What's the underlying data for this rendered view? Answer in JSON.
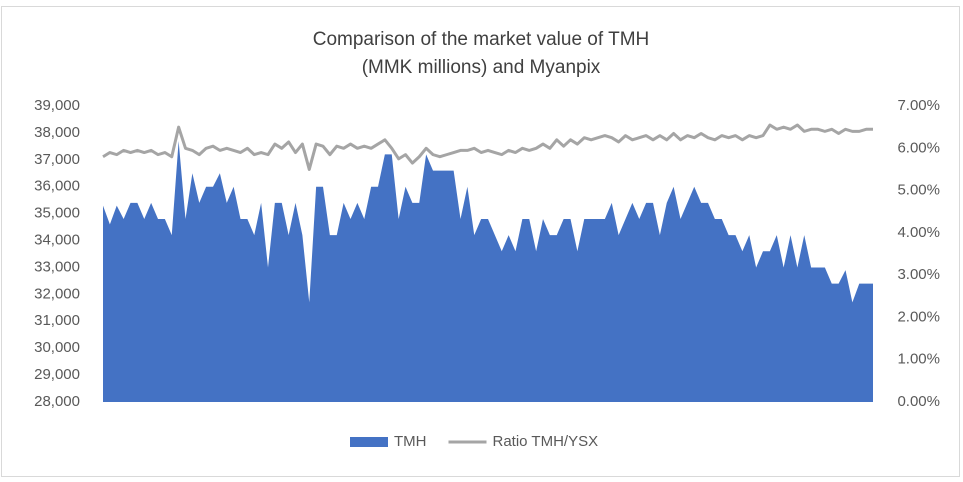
{
  "chart_data": {
    "type": "area-line",
    "title": [
      "Comparison of the market value of TMH",
      "(MMK millions) and Myanpix"
    ],
    "categories": [
      null,
      null,
      null,
      null,
      null,
      null,
      null,
      null,
      null,
      null,
      null,
      null,
      null,
      null,
      null,
      null,
      null,
      null,
      null,
      null,
      null,
      null,
      null,
      null,
      null,
      null,
      null,
      null,
      null,
      null,
      null,
      null,
      null,
      null,
      null,
      null,
      null,
      null,
      null,
      null,
      null,
      null,
      null,
      null,
      null,
      null,
      null,
      null,
      null,
      null,
      null,
      null,
      null,
      null,
      null,
      null,
      null,
      null,
      null,
      null,
      null,
      null,
      null,
      null,
      null,
      null,
      null,
      null,
      null,
      null,
      null,
      null,
      null,
      null,
      null,
      null,
      null,
      null,
      null,
      null,
      null,
      null,
      null,
      null,
      null,
      null,
      null,
      null,
      null,
      null,
      null,
      null,
      null,
      null,
      null,
      null,
      null,
      null,
      null,
      null,
      null,
      null,
      null,
      null,
      null,
      null,
      null,
      null,
      null,
      null,
      null,
      null,
      null
    ],
    "series": [
      {
        "name": "TMH",
        "type": "area",
        "color": "#4472c4",
        "values": [
          35300,
          34600,
          35300,
          34800,
          35400,
          35400,
          34800,
          35400,
          34800,
          34800,
          34200,
          37700,
          34800,
          36500,
          35400,
          36000,
          36000,
          36500,
          35400,
          36000,
          34800,
          34800,
          34200,
          35400,
          33000,
          35400,
          35400,
          34200,
          35400,
          34200,
          31700,
          36000,
          36000,
          34200,
          34200,
          35400,
          34800,
          35400,
          34800,
          36000,
          36000,
          37200,
          37200,
          34800,
          36000,
          35400,
          35400,
          37200,
          36600,
          36600,
          36600,
          36600,
          34800,
          36000,
          34200,
          34800,
          34800,
          34200,
          33600,
          34200,
          33600,
          34800,
          34800,
          33600,
          34800,
          34200,
          34200,
          34800,
          34800,
          33600,
          34800,
          34800,
          34800,
          34800,
          35400,
          34200,
          34800,
          35400,
          34800,
          35400,
          35400,
          34200,
          35400,
          36000,
          34800,
          35400,
          36000,
          35400,
          35400,
          34800,
          34800,
          34200,
          34200,
          33600,
          34200,
          33000,
          33600,
          33600,
          34200,
          33000,
          34200,
          33000,
          34200,
          33000,
          33000,
          33000,
          32400,
          32400,
          32900,
          31700,
          32400,
          32400,
          32400
        ]
      },
      {
        "name": "Ratio TMH/YSX",
        "type": "line",
        "axis": "y2",
        "color": "#a5a5a5",
        "values": [
          5.8,
          5.9,
          5.85,
          5.95,
          5.9,
          5.95,
          5.9,
          5.95,
          5.85,
          5.9,
          5.8,
          6.5,
          6.0,
          5.95,
          5.85,
          6.0,
          6.05,
          5.95,
          6.0,
          5.95,
          5.9,
          6.0,
          5.85,
          5.9,
          5.85,
          6.1,
          6.0,
          6.15,
          5.9,
          6.1,
          5.5,
          6.1,
          6.05,
          5.85,
          6.05,
          6.0,
          6.1,
          6.0,
          6.05,
          6.0,
          6.1,
          6.2,
          6.0,
          5.75,
          5.85,
          5.65,
          5.8,
          6.0,
          5.85,
          5.8,
          5.85,
          5.9,
          5.95,
          5.95,
          6.0,
          5.9,
          5.95,
          5.9,
          5.85,
          5.95,
          5.9,
          6.0,
          5.95,
          6.0,
          6.1,
          6.0,
          6.2,
          6.05,
          6.2,
          6.1,
          6.25,
          6.2,
          6.25,
          6.3,
          6.25,
          6.15,
          6.3,
          6.2,
          6.25,
          6.3,
          6.2,
          6.3,
          6.2,
          6.35,
          6.2,
          6.3,
          6.25,
          6.35,
          6.25,
          6.2,
          6.3,
          6.25,
          6.3,
          6.2,
          6.3,
          6.25,
          6.3,
          6.55,
          6.45,
          6.5,
          6.45,
          6.55,
          6.4,
          6.45,
          6.45,
          6.4,
          6.45,
          6.35,
          6.45,
          6.4,
          6.4,
          6.45,
          6.45
        ]
      }
    ],
    "ylim": [
      28000,
      39000
    ],
    "yticks": [
      {
        "value": 28000,
        "label": "28,000"
      },
      {
        "value": 29000,
        "label": "29,000"
      },
      {
        "value": 30000,
        "label": "30,000"
      },
      {
        "value": 31000,
        "label": "31,000"
      },
      {
        "value": 32000,
        "label": "32,000"
      },
      {
        "value": 33000,
        "label": "33,000"
      },
      {
        "value": 34000,
        "label": "34,000"
      },
      {
        "value": 35000,
        "label": "35,000"
      },
      {
        "value": 36000,
        "label": "36,000"
      },
      {
        "value": 37000,
        "label": "37,000"
      },
      {
        "value": 38000,
        "label": "38,000"
      },
      {
        "value": 39000,
        "label": "39,000"
      }
    ],
    "y2lim": [
      0,
      7
    ],
    "y2ticks": [
      {
        "value": 0,
        "label": "0.00%"
      },
      {
        "value": 1,
        "label": "1.00%"
      },
      {
        "value": 2,
        "label": "2.00%"
      },
      {
        "value": 3,
        "label": "3.00%"
      },
      {
        "value": 4,
        "label": "4.00%"
      },
      {
        "value": 5,
        "label": "5.00%"
      },
      {
        "value": 6,
        "label": "6.00%"
      },
      {
        "value": 7,
        "label": "7.00%"
      }
    ],
    "grid": false,
    "legend": "bottom"
  }
}
